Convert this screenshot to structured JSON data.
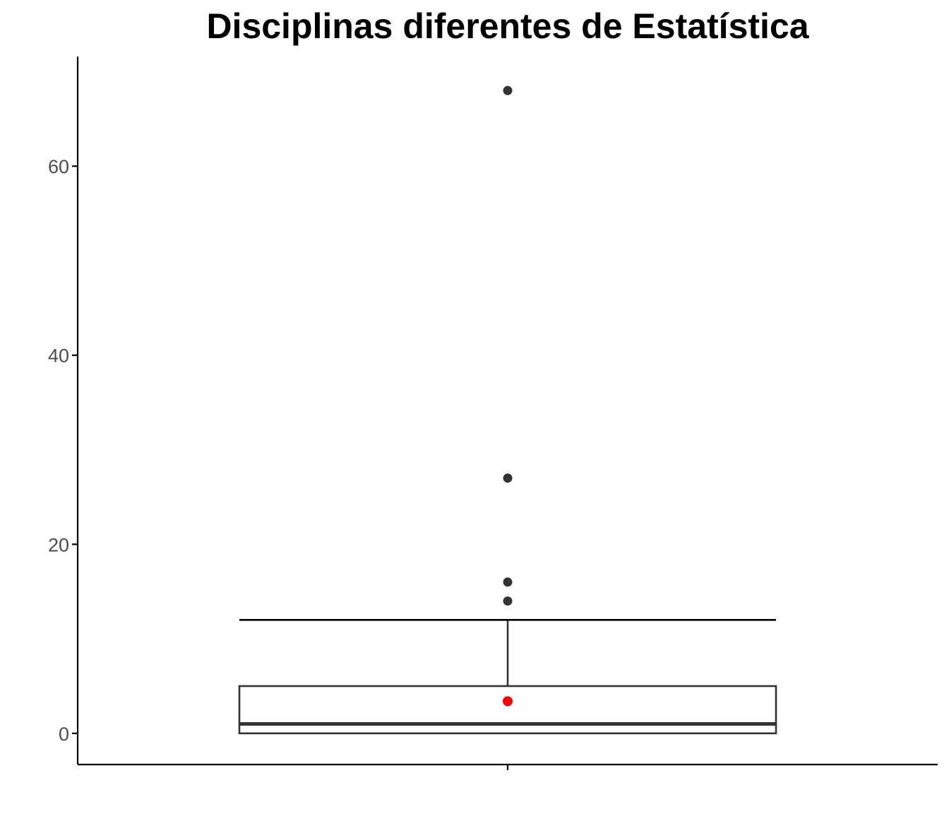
{
  "chart_data": {
    "type": "box",
    "title": "Disciplinas diferentes de Estatística",
    "xlabel": "",
    "ylabel": "",
    "ylim": [
      -3.3,
      71.6
    ],
    "yticks": [
      0,
      20,
      40,
      60
    ],
    "ytick_labels": [
      "0",
      "20",
      "40",
      "60"
    ],
    "grid": false,
    "legend": "none",
    "box": {
      "min": 0,
      "q1": 0,
      "median": 1,
      "q3": 5,
      "whisker_low": 0,
      "whisker_high": 12,
      "mean": 3.4,
      "outliers": [
        14,
        16,
        27,
        68
      ]
    },
    "colors": {
      "box_stroke": "#333333",
      "outlier": "#333333",
      "mean_point": "#ff0000",
      "axis": "#000000",
      "tick_text": "#4d4d4d"
    }
  }
}
